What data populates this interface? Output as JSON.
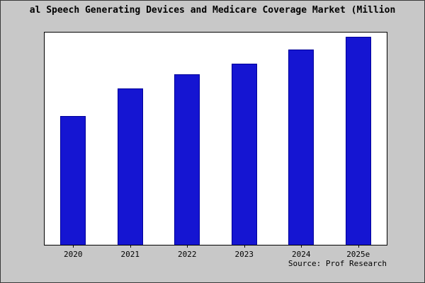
{
  "colors": {
    "background": "#c8c8c8",
    "plot_background": "#ffffff",
    "bar": "#1515d2",
    "bar_border": "#000099"
  },
  "chart_data": {
    "type": "bar",
    "title": "al Speech Generating Devices and Medicare Coverage Market (Million",
    "categories": [
      "2020",
      "2021",
      "2022",
      "2023",
      "2024",
      "2025e"
    ],
    "values": [
      62,
      75,
      82,
      87,
      94,
      100
    ],
    "xlabel": "",
    "ylabel": "",
    "ylim": [
      0,
      102
    ],
    "grid": false,
    "legend": false,
    "source": "Source: Prof Research"
  }
}
